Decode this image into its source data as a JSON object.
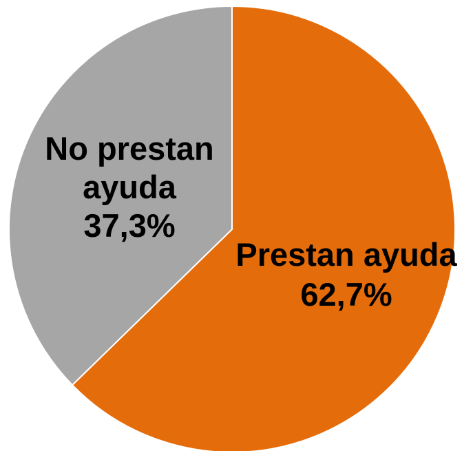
{
  "chart_data": {
    "type": "pie",
    "title": "",
    "start_angle_deg": 90,
    "direction": "clockwise",
    "legend": "none",
    "slices": [
      {
        "label_lines": [
          "Prestan ayuda"
        ],
        "value": 62.7,
        "value_label": "62,7%",
        "color": "#E46C0A"
      },
      {
        "label_lines": [
          "No prestan",
          "ayuda"
        ],
        "value": 37.3,
        "value_label": "37,3%",
        "color": "#A6A6A6"
      }
    ]
  }
}
